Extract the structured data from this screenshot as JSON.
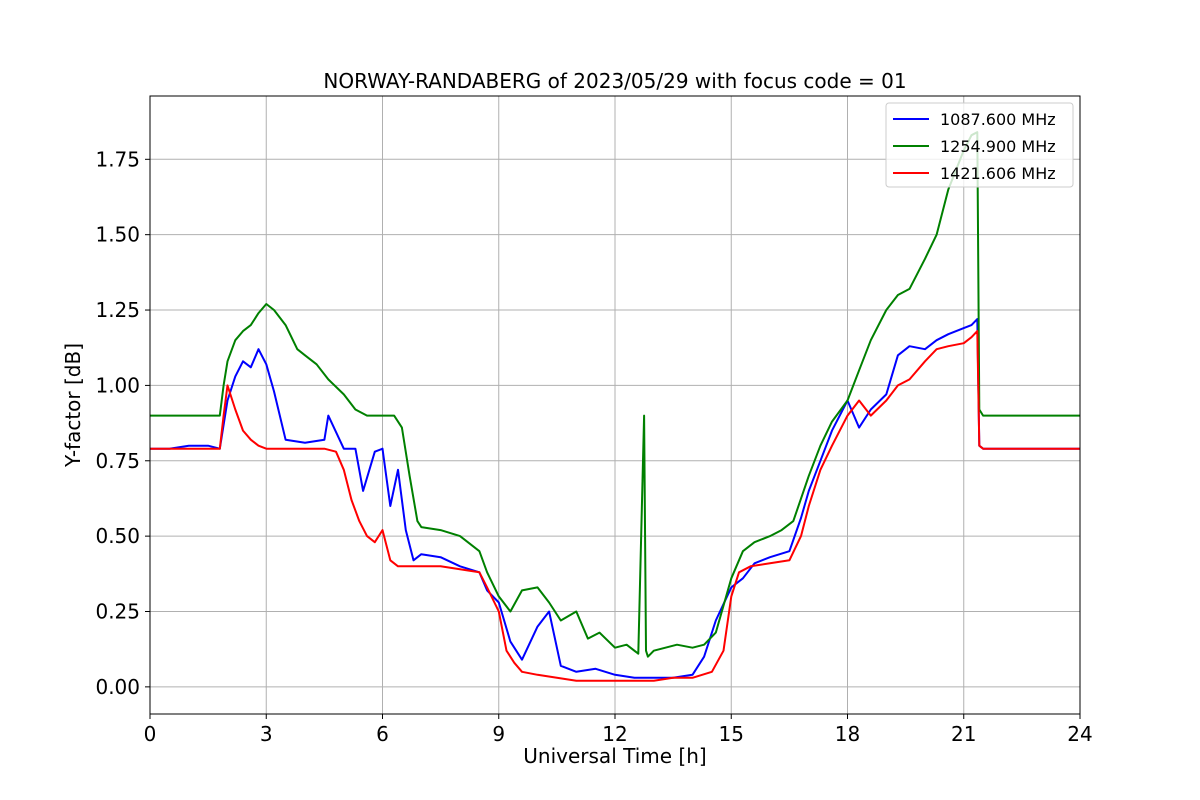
{
  "chart_data": {
    "type": "line",
    "title": "NORWAY-RANDABERG of 2023/05/29 with focus code = 01",
    "xlabel": "Universal Time [h]",
    "ylabel": "Y-factor [dB]",
    "xlim": [
      0,
      24
    ],
    "ylim": [
      -0.09,
      1.96
    ],
    "xticks": [
      "0",
      "3",
      "6",
      "9",
      "12",
      "15",
      "18",
      "21",
      "24"
    ],
    "yticks": [
      "0.00",
      "0.25",
      "0.50",
      "0.75",
      "1.00",
      "1.25",
      "1.50",
      "1.75"
    ],
    "grid": true,
    "legend_position": "top-right",
    "series": [
      {
        "name": "1087.600 MHz",
        "color": "#0000ff",
        "x": [
          0,
          0.5,
          1,
          1.5,
          1.8,
          2.0,
          2.2,
          2.4,
          2.6,
          2.8,
          3.0,
          3.2,
          3.5,
          4.0,
          4.5,
          4.6,
          5.0,
          5.3,
          5.5,
          5.8,
          6.0,
          6.2,
          6.4,
          6.6,
          6.8,
          7.0,
          7.5,
          8.0,
          8.5,
          8.7,
          9.0,
          9.3,
          9.6,
          10.0,
          10.3,
          10.6,
          11.0,
          11.5,
          12.0,
          12.5,
          13.0,
          13.5,
          14.0,
          14.3,
          14.6,
          15.0,
          15.3,
          15.6,
          16.0,
          16.5,
          16.8,
          17.0,
          17.3,
          17.6,
          18.0,
          18.3,
          18.6,
          19.0,
          19.3,
          19.6,
          20.0,
          20.3,
          20.6,
          21.0,
          21.2,
          21.35,
          21.4,
          21.5,
          22.0,
          23.0,
          24.0
        ],
        "y": [
          0.79,
          0.79,
          0.8,
          0.8,
          0.79,
          0.95,
          1.03,
          1.08,
          1.06,
          1.12,
          1.07,
          0.98,
          0.82,
          0.81,
          0.82,
          0.9,
          0.79,
          0.79,
          0.65,
          0.78,
          0.79,
          0.6,
          0.72,
          0.52,
          0.42,
          0.44,
          0.43,
          0.4,
          0.38,
          0.32,
          0.28,
          0.15,
          0.09,
          0.2,
          0.25,
          0.07,
          0.05,
          0.06,
          0.04,
          0.03,
          0.03,
          0.03,
          0.04,
          0.1,
          0.22,
          0.33,
          0.36,
          0.41,
          0.43,
          0.45,
          0.56,
          0.65,
          0.75,
          0.85,
          0.95,
          0.86,
          0.92,
          0.97,
          1.1,
          1.13,
          1.12,
          1.15,
          1.17,
          1.19,
          1.2,
          1.22,
          0.8,
          0.79,
          0.79,
          0.79,
          0.79
        ]
      },
      {
        "name": "1254.900 MHz",
        "color": "#008000",
        "x": [
          0,
          0.5,
          1,
          1.5,
          1.8,
          1.9,
          2.0,
          2.2,
          2.4,
          2.6,
          2.8,
          3.0,
          3.2,
          3.5,
          3.8,
          4.0,
          4.3,
          4.6,
          5.0,
          5.3,
          5.6,
          6.0,
          6.3,
          6.5,
          6.7,
          6.9,
          7.0,
          7.5,
          8.0,
          8.5,
          8.7,
          9.0,
          9.3,
          9.6,
          10.0,
          10.3,
          10.6,
          11.0,
          11.3,
          11.6,
          12.0,
          12.3,
          12.6,
          12.75,
          12.8,
          12.85,
          13.0,
          13.3,
          13.6,
          14.0,
          14.3,
          14.6,
          15.0,
          15.3,
          15.6,
          16.0,
          16.3,
          16.6,
          17.0,
          17.3,
          17.6,
          18.0,
          18.3,
          18.6,
          19.0,
          19.3,
          19.6,
          20.0,
          20.3,
          20.6,
          21.0,
          21.2,
          21.35,
          21.4,
          21.5,
          22.0,
          23.0,
          24.0
        ],
        "y": [
          0.9,
          0.9,
          0.9,
          0.9,
          0.9,
          1.0,
          1.08,
          1.15,
          1.18,
          1.2,
          1.24,
          1.27,
          1.25,
          1.2,
          1.12,
          1.1,
          1.07,
          1.02,
          0.97,
          0.92,
          0.9,
          0.9,
          0.9,
          0.86,
          0.7,
          0.55,
          0.53,
          0.52,
          0.5,
          0.45,
          0.38,
          0.3,
          0.25,
          0.32,
          0.33,
          0.28,
          0.22,
          0.25,
          0.16,
          0.18,
          0.13,
          0.14,
          0.11,
          0.9,
          0.12,
          0.1,
          0.12,
          0.13,
          0.14,
          0.13,
          0.14,
          0.18,
          0.36,
          0.45,
          0.48,
          0.5,
          0.52,
          0.55,
          0.7,
          0.8,
          0.88,
          0.95,
          1.05,
          1.15,
          1.25,
          1.3,
          1.32,
          1.42,
          1.5,
          1.65,
          1.78,
          1.83,
          1.84,
          0.92,
          0.9,
          0.9,
          0.9,
          0.9
        ]
      },
      {
        "name": "1421.606 MHz",
        "color": "#ff0000",
        "x": [
          0,
          0.5,
          1,
          1.5,
          1.8,
          1.9,
          2.0,
          2.2,
          2.4,
          2.6,
          2.8,
          3.0,
          3.5,
          4.0,
          4.5,
          4.8,
          5.0,
          5.2,
          5.4,
          5.6,
          5.8,
          6.0,
          6.2,
          6.4,
          7.0,
          7.5,
          8.0,
          8.5,
          8.7,
          9.0,
          9.2,
          9.4,
          9.6,
          10.0,
          10.5,
          11.0,
          11.5,
          12.0,
          12.5,
          13.0,
          13.5,
          14.0,
          14.5,
          14.8,
          15.0,
          15.2,
          15.5,
          16.0,
          16.5,
          16.8,
          17.0,
          17.3,
          17.6,
          18.0,
          18.3,
          18.6,
          19.0,
          19.3,
          19.6,
          20.0,
          20.3,
          20.6,
          21.0,
          21.2,
          21.35,
          21.4,
          21.5,
          22.0,
          23.0,
          24.0
        ],
        "y": [
          0.79,
          0.79,
          0.79,
          0.79,
          0.79,
          0.9,
          1.0,
          0.92,
          0.85,
          0.82,
          0.8,
          0.79,
          0.79,
          0.79,
          0.79,
          0.78,
          0.72,
          0.62,
          0.55,
          0.5,
          0.48,
          0.52,
          0.42,
          0.4,
          0.4,
          0.4,
          0.39,
          0.38,
          0.33,
          0.25,
          0.12,
          0.08,
          0.05,
          0.04,
          0.03,
          0.02,
          0.02,
          0.02,
          0.02,
          0.02,
          0.03,
          0.03,
          0.05,
          0.12,
          0.3,
          0.38,
          0.4,
          0.41,
          0.42,
          0.5,
          0.6,
          0.72,
          0.8,
          0.9,
          0.95,
          0.9,
          0.95,
          1.0,
          1.02,
          1.08,
          1.12,
          1.13,
          1.14,
          1.16,
          1.18,
          0.8,
          0.79,
          0.79,
          0.79,
          0.79
        ]
      }
    ]
  }
}
